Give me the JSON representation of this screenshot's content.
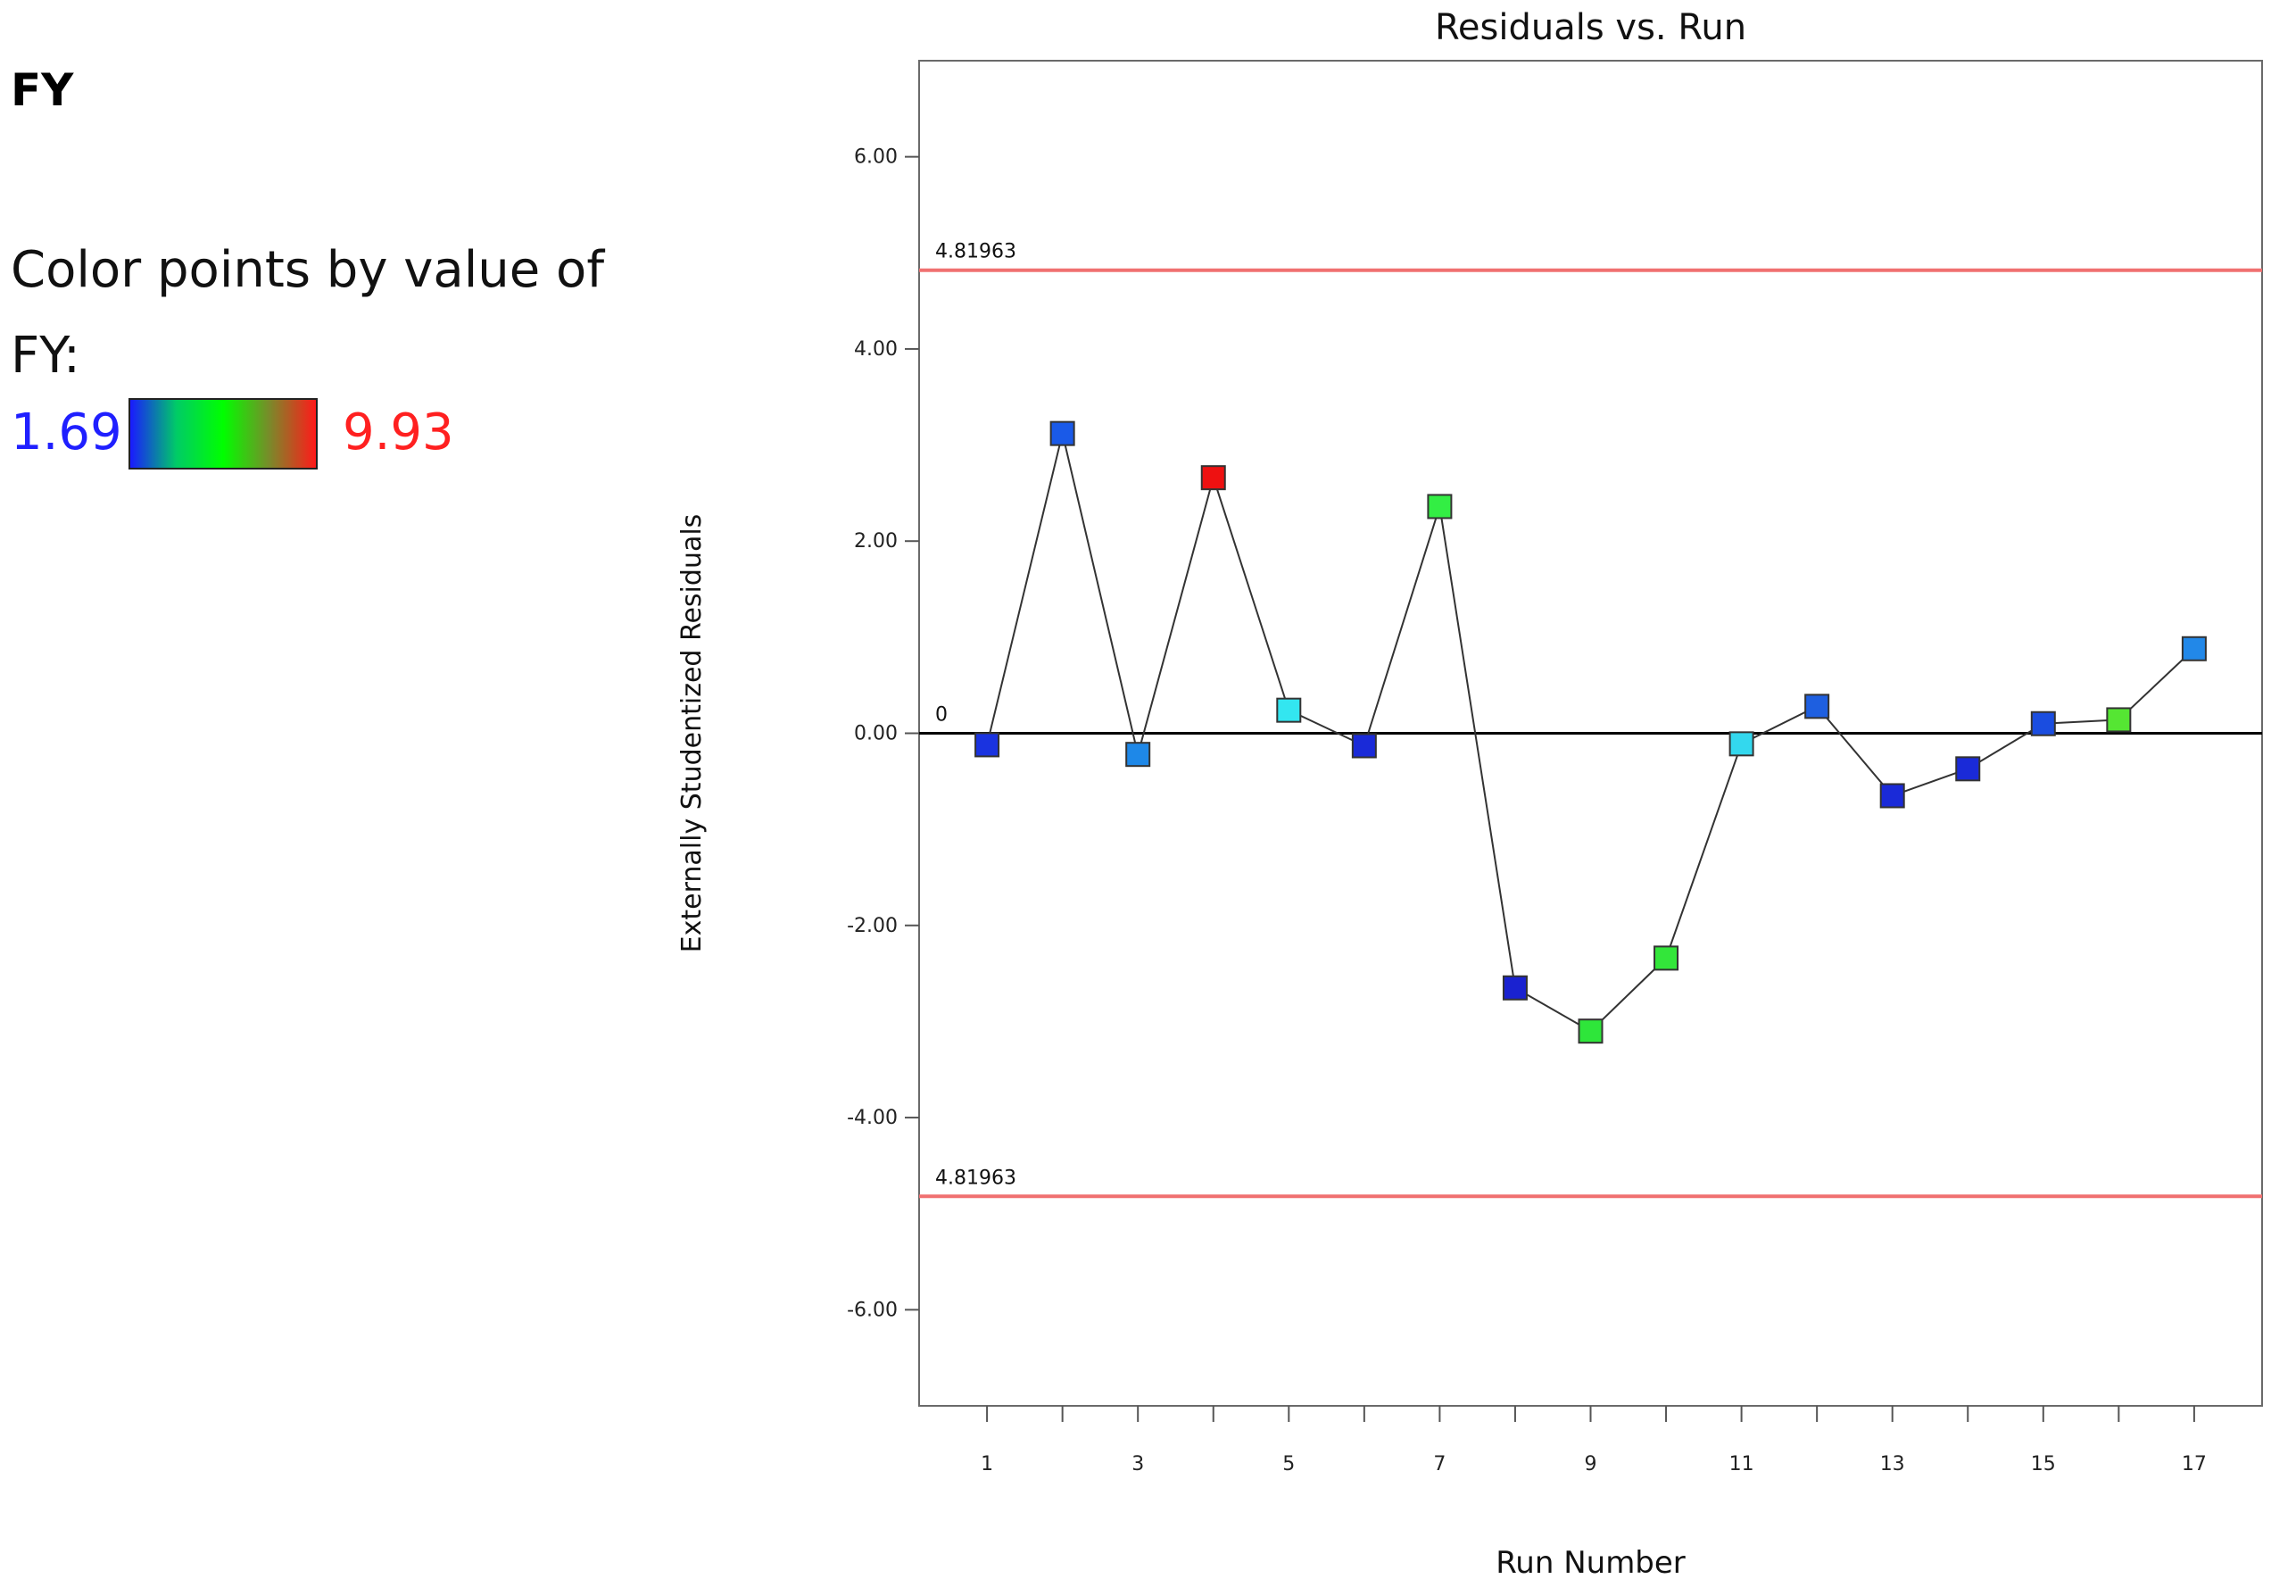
{
  "panel": {
    "response_title": "FY",
    "color_by_label": "Color points by value of FY:",
    "color_min": "1.69",
    "color_max": "9.93",
    "color_min_color": "#1f1fff",
    "color_max_color": "#ff2020",
    "gradient_colors": [
      "#1a1aff",
      "#00cc66",
      "#00ff00",
      "#7a8a2a",
      "#ff1a1a"
    ]
  },
  "chart_data": {
    "type": "scatter",
    "title": "Residuals vs. Run",
    "xlabel": "Run Number",
    "ylabel": "Externally Studentized Residuals",
    "xlim": [
      0.1,
      17.9
    ],
    "ylim": [
      -7.0,
      7.0
    ],
    "x_ticks": [
      1,
      2,
      3,
      4,
      5,
      6,
      7,
      8,
      9,
      10,
      11,
      12,
      13,
      14,
      15,
      16,
      17
    ],
    "x_tick_labels": [
      "1",
      "3",
      "5",
      "7",
      "9",
      "11",
      "13",
      "15",
      "17"
    ],
    "y_ticks": [
      6,
      4,
      2,
      0,
      -2,
      -4,
      -6
    ],
    "y_tick_labels": [
      "6.00",
      "4.00",
      "2.00",
      "0.00",
      "-2.00",
      "-4.00",
      "-6.00"
    ],
    "connect_points": true,
    "reference_lines": [
      {
        "y": 4.81963,
        "label": "4.81963",
        "color": "#f07070"
      },
      {
        "y": 0,
        "label": "0",
        "color": "#000000"
      },
      {
        "y": -4.81963,
        "label": "4.81963",
        "color": "#f07070"
      }
    ],
    "points": [
      {
        "x": 1,
        "y": -0.12,
        "color": "#1a33e0"
      },
      {
        "x": 2,
        "y": 3.12,
        "color": "#1a5ae8"
      },
      {
        "x": 3,
        "y": -0.22,
        "color": "#1e88e8"
      },
      {
        "x": 4,
        "y": 2.66,
        "color": "#ee1111"
      },
      {
        "x": 5,
        "y": 0.24,
        "color": "#33e6f0"
      },
      {
        "x": 6,
        "y": -0.13,
        "color": "#1a2ad8"
      },
      {
        "x": 7,
        "y": 2.36,
        "color": "#33ee44"
      },
      {
        "x": 8,
        "y": -2.65,
        "color": "#1a22d0"
      },
      {
        "x": 9,
        "y": -3.1,
        "color": "#2ee63a"
      },
      {
        "x": 10,
        "y": -2.34,
        "color": "#33e63a"
      },
      {
        "x": 11,
        "y": -0.11,
        "color": "#33d8ee"
      },
      {
        "x": 12,
        "y": 0.28,
        "color": "#1e5fe0"
      },
      {
        "x": 13,
        "y": -0.65,
        "color": "#1a2ad8"
      },
      {
        "x": 14,
        "y": -0.37,
        "color": "#1a2ad8"
      },
      {
        "x": 15,
        "y": 0.1,
        "color": "#1a4de0"
      },
      {
        "x": 16,
        "y": 0.14,
        "color": "#55e633"
      },
      {
        "x": 17,
        "y": 0.88,
        "color": "#2288e8"
      }
    ]
  }
}
